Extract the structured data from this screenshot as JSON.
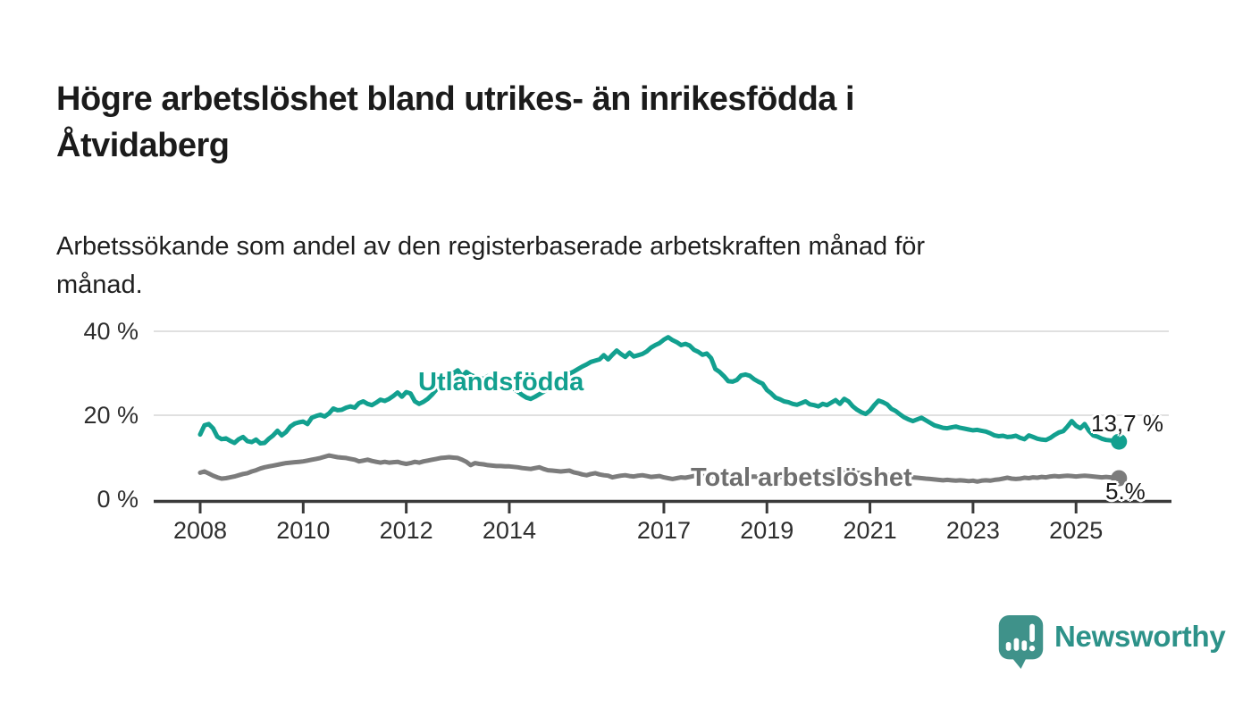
{
  "header": {
    "title_lines": [
      "Högre arbetslöshet bland utrikes- än inrikesfödda i",
      "Åtvidaberg"
    ],
    "subtitle_lines": [
      "Arbetssökande som andel av den registerbaserade arbetskraften månad för",
      "månad."
    ]
  },
  "colors": {
    "foreign_born_line": "#12a08f",
    "total_line": "#7c7c7c",
    "total_label": "#6f6f6f",
    "axis": "#3a3a3a",
    "grid": "#e0e0e0",
    "end_label_text": "#1a1a1a",
    "logo_icon": "#3f928a",
    "logo_text": "#2d9289"
  },
  "footer": {
    "brand": "Newsworthy",
    "logo_icon": "newsworthy-speech-bubble-bar-chart-icon"
  },
  "chart_data": {
    "type": "line",
    "title": "Högre arbetslöshet bland utrikes- än inrikesfödda i Åtvidaberg",
    "subtitle": "Arbetssökande som andel av den registerbaserade arbetskraften månad för månad.",
    "unit": "%",
    "grid": "horizontal",
    "legend_position": "inline-labels",
    "ylim": [
      0,
      42
    ],
    "y_ticks": [
      {
        "value": 0,
        "label": "0 %"
      },
      {
        "value": 20,
        "label": "20 %"
      },
      {
        "value": 40,
        "label": "40 %"
      }
    ],
    "x_ticks": [
      {
        "year": 2008,
        "label": "2008"
      },
      {
        "year": 2010,
        "label": "2010"
      },
      {
        "year": 2012,
        "label": "2012"
      },
      {
        "year": 2014,
        "label": "2014"
      },
      {
        "year": 2017,
        "label": "2017"
      },
      {
        "year": 2019,
        "label": "2019"
      },
      {
        "year": 2021,
        "label": "2021"
      },
      {
        "year": 2023,
        "label": "2023"
      },
      {
        "year": 2025,
        "label": "2025"
      }
    ],
    "series": [
      {
        "name": "Utlandsfödda",
        "color": "#12a08f",
        "end_label": "13,7 %",
        "last_value": 13.7,
        "start_year": 2008,
        "interval_months": 1,
        "values": [
          15.4,
          17.6,
          17.9,
          16.9,
          14.9,
          14.3,
          14.5,
          13.9,
          13.4,
          14.3,
          14.8,
          13.8,
          13.6,
          14.2,
          13.3,
          13.4,
          14.4,
          15.2,
          16.3,
          15.2,
          16.0,
          17.3,
          18.0,
          18.3,
          18.5,
          17.9,
          19.4,
          19.8,
          20.1,
          19.7,
          20.4,
          21.6,
          21.2,
          21.3,
          21.8,
          22.1,
          21.8,
          22.9,
          23.3,
          22.7,
          22.4,
          23.0,
          23.7,
          23.4,
          23.9,
          24.6,
          25.4,
          24.4,
          25.5,
          25.2,
          23.3,
          22.7,
          23.2,
          23.9,
          24.9,
          26.1,
          27.0,
          28.2,
          29.2,
          30.0,
          30.7,
          29.2,
          30.3,
          29.6,
          29.2,
          29.0,
          28.6,
          29.3,
          28.9,
          28.3,
          27.9,
          27.4,
          27.0,
          26.4,
          25.6,
          24.8,
          24.2,
          23.9,
          24.4,
          25.0,
          25.6,
          26.3,
          27.1,
          27.8,
          28.6,
          29.3,
          29.9,
          30.4,
          31.0,
          31.6,
          32.1,
          32.7,
          33.0,
          33.3,
          34.3,
          33.3,
          34.4,
          35.4,
          34.6,
          33.9,
          34.9,
          34.0,
          34.3,
          34.6,
          35.2,
          36.1,
          36.7,
          37.2,
          38.0,
          38.6,
          37.9,
          37.4,
          36.7,
          37.0,
          36.6,
          35.6,
          35.1,
          34.4,
          34.7,
          33.6,
          31.0,
          30.3,
          29.3,
          28.1,
          28.0,
          28.4,
          29.5,
          29.7,
          29.4,
          28.6,
          28.0,
          27.5,
          26.0,
          25.2,
          24.2,
          23.8,
          23.3,
          23.1,
          22.7,
          22.5,
          22.9,
          23.3,
          22.6,
          22.4,
          22.1,
          22.7,
          22.4,
          23.0,
          23.6,
          22.7,
          23.9,
          23.3,
          22.1,
          21.3,
          20.7,
          20.3,
          21.1,
          22.4,
          23.5,
          23.1,
          22.6,
          21.5,
          21.0,
          20.2,
          19.5,
          19.0,
          18.6,
          19.0,
          19.4,
          18.8,
          18.2,
          17.6,
          17.3,
          17.0,
          16.9,
          17.1,
          17.3,
          17.0,
          16.8,
          16.6,
          16.4,
          16.5,
          16.3,
          16.1,
          15.7,
          15.2,
          15.0,
          15.1,
          14.8,
          14.9,
          15.1,
          14.6,
          14.3,
          15.2,
          14.8,
          14.4,
          14.2,
          14.1,
          14.6,
          15.3,
          15.9,
          16.2,
          17.3,
          18.6,
          17.5,
          16.9,
          17.9,
          16.3,
          15.2,
          14.9,
          14.4,
          14.1,
          14.0,
          13.9,
          13.7
        ]
      },
      {
        "name": "Total arbetslöshet",
        "color": "#7c7c7c",
        "end_label": "5.%",
        "last_value": 5,
        "start_year": 2008,
        "interval_months": 1,
        "values": [
          6.3,
          6.6,
          6.1,
          5.6,
          5.2,
          4.9,
          5.0,
          5.2,
          5.4,
          5.7,
          6.0,
          6.2,
          6.6,
          6.9,
          7.3,
          7.6,
          7.8,
          8.0,
          8.2,
          8.4,
          8.6,
          8.7,
          8.8,
          8.9,
          9.0,
          9.2,
          9.4,
          9.6,
          9.8,
          10.1,
          10.4,
          10.2,
          10.0,
          9.9,
          9.8,
          9.6,
          9.4,
          9.0,
          9.2,
          9.4,
          9.1,
          8.9,
          8.7,
          8.9,
          8.7,
          8.8,
          8.9,
          8.6,
          8.4,
          8.6,
          8.9,
          8.7,
          9.0,
          9.2,
          9.4,
          9.6,
          9.8,
          9.9,
          10.0,
          9.9,
          9.8,
          9.4,
          8.9,
          8.1,
          8.6,
          8.4,
          8.3,
          8.1,
          8.0,
          7.9,
          7.9,
          7.8,
          7.8,
          7.7,
          7.6,
          7.4,
          7.3,
          7.2,
          7.4,
          7.6,
          7.2,
          6.9,
          6.8,
          6.7,
          6.6,
          6.7,
          6.8,
          6.4,
          6.2,
          5.9,
          5.7,
          6.0,
          6.2,
          5.9,
          5.7,
          5.6,
          5.2,
          5.4,
          5.6,
          5.7,
          5.5,
          5.4,
          5.6,
          5.7,
          5.5,
          5.3,
          5.4,
          5.5,
          5.2,
          5.0,
          4.8,
          5.0,
          5.2,
          5.1,
          5.3,
          5.5,
          5.6,
          5.5,
          5.4,
          5.5,
          5.5,
          5.4,
          5.3,
          5.4,
          5.5,
          5.4,
          5.3,
          5.2,
          5.3,
          5.4,
          5.3,
          5.4,
          5.4,
          5.3,
          5.2,
          5.3,
          5.4,
          5.5,
          5.4,
          5.3,
          5.4,
          5.5,
          5.6,
          5.7,
          5.8,
          5.9,
          6.1,
          6.4,
          6.6,
          6.7,
          6.6,
          6.5,
          6.4,
          6.3,
          6.2,
          6.1,
          6.0,
          6.1,
          6.0,
          5.9,
          5.8,
          5.7,
          5.6,
          5.5,
          5.4,
          5.3,
          5.2,
          5.1,
          5.0,
          4.9,
          4.8,
          4.7,
          4.6,
          4.5,
          4.6,
          4.5,
          4.4,
          4.5,
          4.4,
          4.3,
          4.4,
          4.2,
          4.4,
          4.5,
          4.4,
          4.6,
          4.7,
          4.9,
          5.1,
          4.9,
          4.8,
          4.9,
          5.1,
          5.0,
          5.2,
          5.1,
          5.3,
          5.2,
          5.4,
          5.5,
          5.4,
          5.5,
          5.6,
          5.5,
          5.4,
          5.5,
          5.6,
          5.5,
          5.4,
          5.3,
          5.2,
          5.3,
          5.2,
          5.1,
          5.0
        ]
      }
    ]
  }
}
